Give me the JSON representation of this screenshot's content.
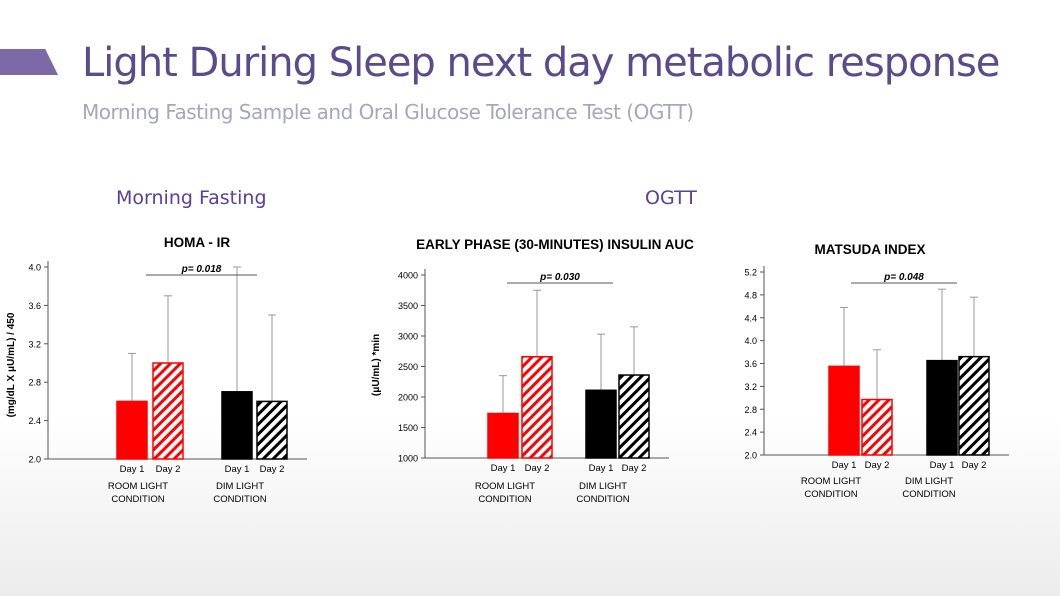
{
  "slide": {
    "title": "Light During Sleep next day metabolic response",
    "subtitle": "Morning Fasting Sample and Oral Glucose Tolerance Test (OGTT)",
    "section_left": "Morning Fasting",
    "section_right": "OGTT"
  },
  "colors": {
    "accent": "#7b6aa6",
    "title": "#5b4a8c",
    "room_light": "#ff0000",
    "dim_light": "#000000"
  },
  "chart_data": [
    {
      "type": "bar",
      "title": "HOMA - IR",
      "ylabel": "(mg/dL X μU/mL) / 450",
      "ylim": [
        2.0,
        4.0
      ],
      "yticks": [
        "2.0",
        "2.4",
        "2.8",
        "3.2",
        "3.6",
        "4.0"
      ],
      "categories": [
        "Day 1",
        "Day 2",
        "Day 1",
        "Day 2"
      ],
      "groups": [
        "ROOM LIGHT",
        "CONDITION",
        "DIM LIGHT",
        "CONDITION"
      ],
      "values": [
        2.6,
        3.0,
        2.7,
        2.6
      ],
      "error_upper": [
        3.1,
        3.7,
        4.0,
        3.5
      ],
      "pvalue": "p= 0.018"
    },
    {
      "type": "bar",
      "title": "EARLY PHASE (30-MINUTES) INSULIN AUC",
      "ylabel": "(μU/mL) *min",
      "ylim": [
        1000,
        4000
      ],
      "yticks": [
        "1000",
        "1500",
        "2000",
        "2500",
        "3000",
        "3500",
        "4000"
      ],
      "categories": [
        "Day 1",
        "Day 2",
        "Day 1",
        "Day 2"
      ],
      "groups": [
        "ROOM LIGHT",
        "CONDITION",
        "DIM LIGHT",
        "CONDITION"
      ],
      "values": [
        1730,
        2660,
        2110,
        2360
      ],
      "error_upper": [
        2350,
        3750,
        3030,
        3150
      ],
      "pvalue": "p= 0.030"
    },
    {
      "type": "bar",
      "title": "MATSUDA INDEX",
      "ylabel": "",
      "ylim": [
        2.0,
        5.2
      ],
      "yticks": [
        "2.0",
        "2.4",
        "2.8",
        "3.2",
        "3.6",
        "4.0",
        "4.4",
        "4.8",
        "5.2"
      ],
      "categories": [
        "Day 1",
        "Day 2",
        "Day 1",
        "Day 2"
      ],
      "groups": [
        "ROOM LIGHT",
        "CONDITION",
        "DIM LIGHT",
        "CONDITION"
      ],
      "values": [
        3.55,
        2.97,
        3.65,
        3.72
      ],
      "error_upper": [
        4.58,
        3.84,
        4.9,
        4.76
      ],
      "pvalue": "p= 0.048"
    }
  ]
}
